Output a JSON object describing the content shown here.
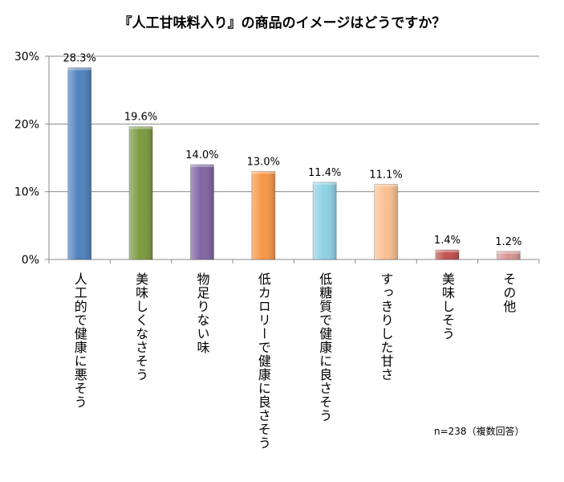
{
  "chart_data": {
    "type": "bar",
    "title": "『人工甘味料入り』の商品のイメージはどうですか？",
    "categories": [
      "人工的で健康に悪そう",
      "美味しくなさそう",
      "物足りない味",
      "低カロリーで健康に良さそう",
      "低糖質で健康に良さそう",
      "すっきりした甘さ",
      "美味しそう",
      "その他"
    ],
    "values": [
      28.3,
      19.6,
      14.0,
      13.0,
      11.4,
      11.1,
      1.4,
      1.2
    ],
    "value_labels": [
      "28.3%",
      "19.6%",
      "14.0%",
      "13.0%",
      "11.4%",
      "11.1%",
      "1.4%",
      "1.2%"
    ],
    "colors": [
      "#4F81BD",
      "#7A9A3F",
      "#8064A2",
      "#F79646",
      "#8FD1E6",
      "#FAC090",
      "#C0504D",
      "#D99694"
    ],
    "ylim": [
      0,
      30
    ],
    "yticks": [
      0,
      10,
      20,
      30
    ],
    "ytick_labels": [
      "0%",
      "10%",
      "20%",
      "30%"
    ],
    "xlabel": "",
    "ylabel": "",
    "grid": true,
    "note": "n=238（複数回答）"
  }
}
